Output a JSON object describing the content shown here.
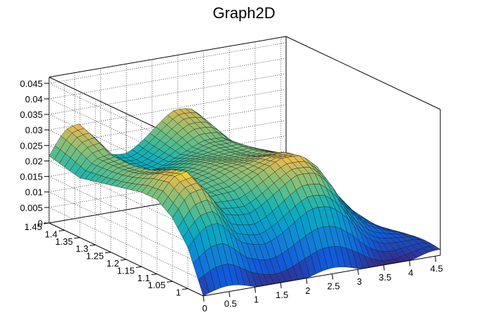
{
  "chart_data": {
    "type": "surface",
    "title": "Graph2D",
    "xlabel": "",
    "ylabel": "",
    "zlabel": "",
    "xlim": [
      0,
      4.6
    ],
    "ylim": [
      0.95,
      1.45
    ],
    "zlim": [
      0,
      0.047
    ],
    "grid": true,
    "colormap": "parula",
    "x_ticks": [
      "0",
      "0.5",
      "1",
      "1.5",
      "2",
      "2.5",
      "3",
      "3.5",
      "4",
      "4.5"
    ],
    "x_tick_values": [
      0,
      0.5,
      1,
      1.5,
      2,
      2.5,
      3,
      3.5,
      4,
      4.5
    ],
    "y_ticks": [
      "1",
      "1.05",
      "1.1",
      "1.15",
      "1.2",
      "1.25",
      "1.3",
      "1.35",
      "1.4",
      "1.45"
    ],
    "y_tick_values": [
      1,
      1.05,
      1.1,
      1.15,
      1.2,
      1.25,
      1.3,
      1.35,
      1.4,
      1.45
    ],
    "z_ticks": [
      "0",
      "0.005",
      "0.01",
      "0.015",
      "0.02",
      "0.025",
      "0.03",
      "0.035",
      "0.04",
      "0.045"
    ],
    "z_tick_values": [
      0,
      0.005,
      0.01,
      0.015,
      0.02,
      0.025,
      0.03,
      0.035,
      0.04,
      0.045
    ],
    "surface_profile": {
      "description_points_x": [
        0,
        0.3,
        0.6,
        1.0,
        1.5,
        2.0,
        2.4,
        2.8,
        3.1,
        3.4,
        3.8,
        4.2,
        4.6
      ],
      "height_along_x": [
        0.024,
        0.03,
        0.031,
        0.022,
        0.023,
        0.027,
        0.03,
        0.03,
        0.026,
        0.018,
        0.01,
        0.004,
        0.0
      ],
      "height_along_y_factor": [
        0.0,
        0.55,
        0.85,
        1.0,
        1.0,
        0.95,
        0.9,
        0.85,
        0.8,
        0.85,
        0.9
      ]
    }
  }
}
